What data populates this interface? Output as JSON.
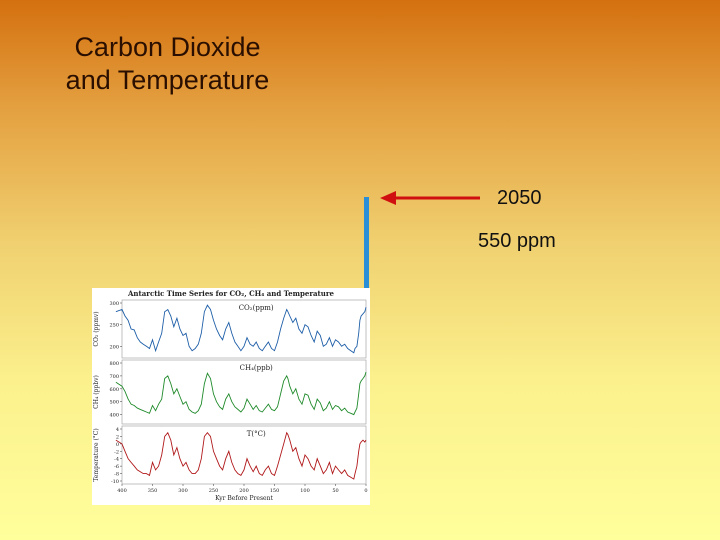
{
  "slide": {
    "title_line1": "Carbon Dioxide",
    "title_line2": "and Temperature",
    "annotation_year": "2050",
    "annotation_value": "550 ppm"
  },
  "colors": {
    "co2": "#1f5fa8",
    "ch4": "#1f8a2a",
    "temp": "#b0181a",
    "arrow": "#d01010",
    "bar": "#2a8fd6"
  },
  "chart_data": {
    "type": "line",
    "title": "Antarctic Time Series for CO₂, CH₄ and Temperature",
    "xlabel": "Kyr Before Present",
    "x_ticks": [
      "400",
      "350",
      "300",
      "250",
      "200",
      "150",
      "100",
      "50",
      "0"
    ],
    "xlim": [
      400,
      0
    ],
    "series": [
      {
        "name": "CO₂(ppm)",
        "ylabel": "CO₂ (ppmv)",
        "y_ticks": [
          "300",
          "250",
          "200"
        ],
        "ylim": [
          180,
          300
        ],
        "x": [
          410,
          400,
          395,
          390,
          385,
          380,
          375,
          370,
          365,
          360,
          355,
          350,
          345,
          340,
          335,
          330,
          325,
          320,
          315,
          310,
          305,
          300,
          295,
          290,
          285,
          280,
          275,
          270,
          265,
          260,
          255,
          250,
          245,
          240,
          235,
          230,
          225,
          220,
          215,
          210,
          205,
          200,
          195,
          190,
          185,
          180,
          175,
          170,
          165,
          160,
          155,
          150,
          145,
          140,
          135,
          130,
          128,
          125,
          120,
          115,
          110,
          105,
          100,
          95,
          90,
          85,
          80,
          75,
          70,
          65,
          60,
          55,
          50,
          45,
          40,
          35,
          30,
          25,
          20,
          18,
          15,
          12,
          10,
          8,
          5,
          2,
          0
        ],
        "y": [
          280,
          285,
          270,
          260,
          240,
          238,
          220,
          210,
          205,
          200,
          195,
          215,
          190,
          210,
          230,
          280,
          285,
          270,
          245,
          265,
          240,
          225,
          230,
          200,
          190,
          195,
          205,
          230,
          280,
          295,
          285,
          260,
          240,
          225,
          215,
          240,
          255,
          230,
          210,
          200,
          190,
          200,
          220,
          205,
          200,
          210,
          195,
          190,
          200,
          210,
          195,
          190,
          210,
          240,
          265,
          285,
          280,
          270,
          255,
          265,
          240,
          230,
          250,
          245,
          225,
          210,
          235,
          225,
          200,
          205,
          220,
          200,
          215,
          210,
          200,
          205,
          195,
          190,
          185,
          195,
          200,
          230,
          260,
          270,
          275,
          280,
          290
        ]
      },
      {
        "name": "CH₄(ppb)",
        "ylabel": "CH₄ (ppbv)",
        "y_ticks": [
          "800",
          "700",
          "600",
          "500",
          "400"
        ],
        "ylim": [
          350,
          800
        ],
        "x": [
          410,
          400,
          395,
          390,
          385,
          380,
          375,
          370,
          365,
          360,
          355,
          350,
          345,
          340,
          335,
          330,
          325,
          320,
          315,
          310,
          305,
          300,
          295,
          290,
          285,
          280,
          275,
          270,
          265,
          260,
          255,
          250,
          245,
          240,
          235,
          230,
          225,
          220,
          215,
          210,
          205,
          200,
          195,
          190,
          185,
          180,
          175,
          170,
          165,
          160,
          155,
          150,
          145,
          140,
          135,
          130,
          128,
          125,
          120,
          115,
          110,
          105,
          100,
          95,
          90,
          85,
          80,
          75,
          70,
          65,
          60,
          55,
          50,
          45,
          40,
          35,
          30,
          25,
          20,
          18,
          15,
          12,
          10,
          8,
          5,
          2,
          0
        ],
        "y": [
          650,
          620,
          580,
          520,
          480,
          470,
          450,
          440,
          430,
          420,
          410,
          470,
          430,
          480,
          520,
          680,
          700,
          640,
          560,
          600,
          540,
          480,
          500,
          440,
          420,
          410,
          430,
          480,
          640,
          720,
          680,
          560,
          500,
          460,
          440,
          520,
          560,
          500,
          460,
          440,
          420,
          450,
          520,
          480,
          440,
          470,
          430,
          420,
          450,
          480,
          440,
          430,
          460,
          560,
          660,
          700,
          680,
          620,
          560,
          600,
          520,
          480,
          560,
          550,
          480,
          440,
          520,
          490,
          430,
          450,
          500,
          440,
          470,
          460,
          430,
          450,
          420,
          410,
          400,
          420,
          450,
          560,
          640,
          660,
          680,
          700,
          730
        ]
      },
      {
        "name": "T(°C)",
        "ylabel": "Temperature (°C)",
        "y_ticks": [
          "4",
          "2",
          "0",
          "-2",
          "-4",
          "-6",
          "-8",
          "-10"
        ],
        "ylim": [
          -10,
          4
        ],
        "x": [
          410,
          400,
          395,
          390,
          385,
          380,
          375,
          370,
          365,
          360,
          355,
          350,
          345,
          340,
          335,
          330,
          325,
          320,
          315,
          310,
          305,
          300,
          295,
          290,
          285,
          280,
          275,
          270,
          265,
          260,
          255,
          250,
          245,
          240,
          235,
          230,
          225,
          220,
          215,
          210,
          205,
          200,
          195,
          190,
          185,
          180,
          175,
          170,
          165,
          160,
          155,
          150,
          145,
          140,
          135,
          130,
          128,
          125,
          120,
          115,
          110,
          105,
          100,
          95,
          90,
          85,
          80,
          75,
          70,
          65,
          60,
          55,
          50,
          45,
          40,
          35,
          30,
          25,
          20,
          18,
          15,
          12,
          10,
          8,
          5,
          2,
          0
        ],
        "y": [
          1,
          0,
          -2,
          -4,
          -5,
          -6,
          -7,
          -7.5,
          -8,
          -8,
          -8.5,
          -5,
          -7,
          -6,
          -3,
          2,
          3,
          1,
          -3,
          -1,
          -4,
          -6,
          -5,
          -7,
          -8,
          -8,
          -7,
          -4,
          2,
          3,
          2,
          -2,
          -4,
          -6,
          -7,
          -4,
          -2,
          -5,
          -7,
          -8,
          -8.5,
          -7,
          -4,
          -6,
          -7.5,
          -6,
          -8,
          -8.5,
          -7,
          -6,
          -8,
          -8.5,
          -6,
          -3,
          0,
          3,
          2.5,
          1,
          -2,
          -1,
          -4,
          -6,
          -3,
          -4,
          -6,
          -7,
          -4,
          -6,
          -8,
          -7,
          -5,
          -8,
          -6,
          -7,
          -8,
          -7,
          -8.5,
          -9,
          -9.5,
          -8,
          -6,
          -2,
          0,
          0.5,
          1,
          0.5,
          1
        ]
      }
    ]
  }
}
